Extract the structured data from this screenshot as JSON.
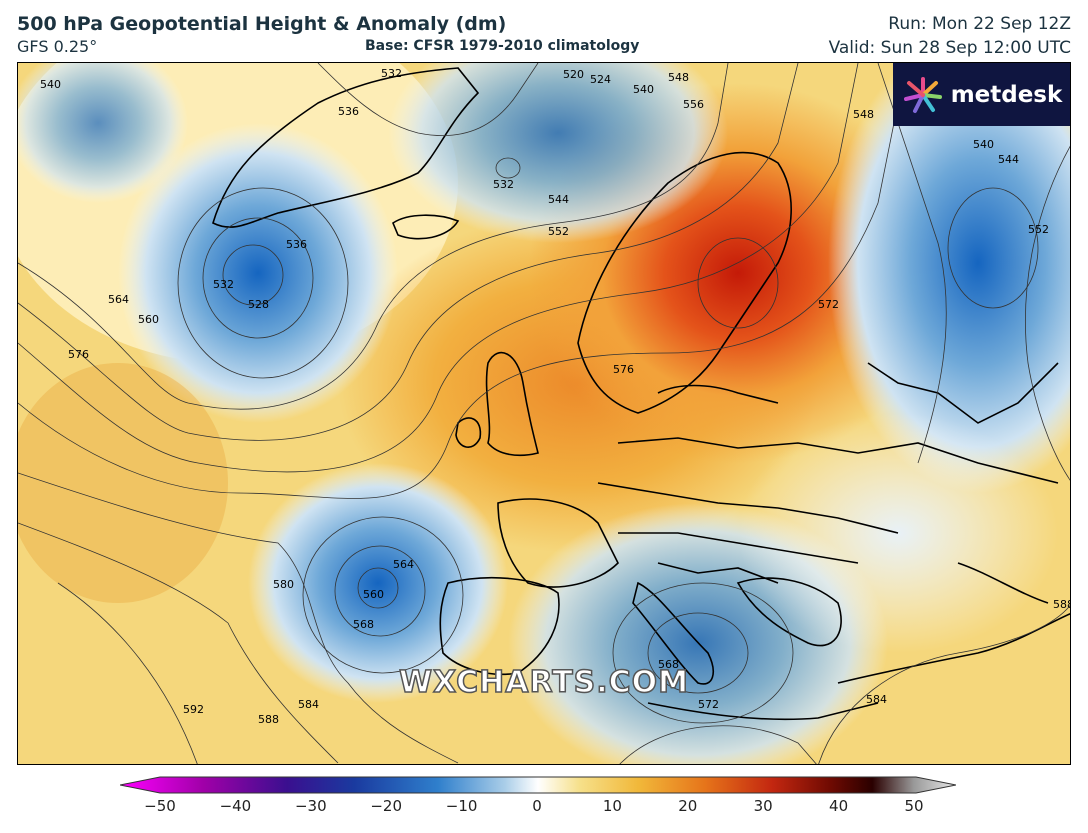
{
  "header": {
    "title": "500 hPa Geopotential Height & Anomaly (dm)",
    "model": "GFS 0.25°",
    "base": "Base: CFSR 1979-2010 climatology",
    "run": "Run: Mon 22 Sep 12Z",
    "valid": "Valid: Sun 28 Sep 12:00 UTC"
  },
  "logo": {
    "text": "metdesk",
    "icon": "sun-burst-icon",
    "background": "#0f1540"
  },
  "watermark": "WXCHARTS.COM",
  "map": {
    "contour_labels": [
      "532",
      "536",
      "540",
      "544",
      "548",
      "552",
      "556",
      "560",
      "564",
      "568",
      "572",
      "576",
      "580",
      "584",
      "588",
      "592",
      "528",
      "520",
      "524"
    ],
    "features": [
      "low-greenland",
      "low-iberia-atlantic",
      "low-italy",
      "low-scandinavia-east",
      "ridge-scandinavia"
    ]
  },
  "colorbar": {
    "ticks": [
      "−50",
      "−40",
      "−30",
      "−20",
      "−10",
      "0",
      "10",
      "20",
      "30",
      "40",
      "50"
    ],
    "min": -50,
    "max": 50,
    "colors": [
      "#ff00ff",
      "#7a0a8f",
      "#20209a",
      "#1f5fc0",
      "#7fb3dc",
      "#ffffff",
      "#f3c640",
      "#e8741a",
      "#b81808",
      "#3a0000",
      "#d0d0d0"
    ]
  }
}
